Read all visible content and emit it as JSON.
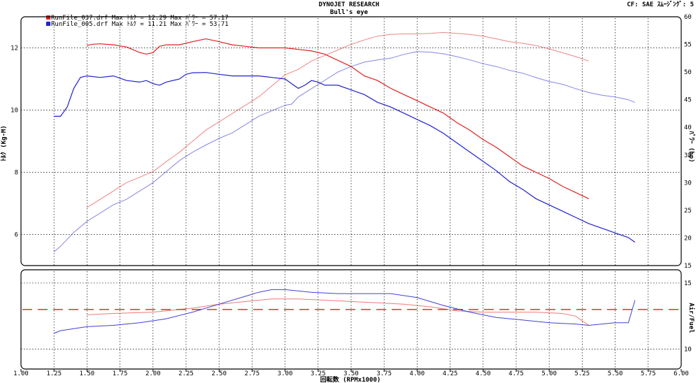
{
  "header": {
    "title": "DYNOJET  RESEARCH",
    "subtitle": "Bull's eye",
    "cf_label": "CF: SAE  ｽﾑｰｼﾞﾝｸﾞ: 5"
  },
  "legend": [
    {
      "text": "RunFile_037.drf Max ﾄﾙｸ = 12.29    Max ﾊﾟﾜｰ = 57.17",
      "color": "#e02020"
    },
    {
      "text": "RunFile_005.drf Max ﾄﾙｸ = 11.21    Max ﾊﾟﾜｰ = 53.71",
      "color": "#2020d0"
    }
  ],
  "axes": {
    "x_label": "回転数 (RPMx1000)",
    "left_label": "ﾄﾙｸ (Kg-M)",
    "right_label": "ﾊﾟﾜｰ (hp)",
    "af_label": "Air/Fuel"
  },
  "chart_data": {
    "type": "line",
    "xlim": [
      1.0,
      6.0
    ],
    "x_ticks": [
      "1.00",
      "1.25",
      "1.50",
      "1.75",
      "2.00",
      "2.25",
      "2.50",
      "2.75",
      "3.00",
      "3.25",
      "3.50",
      "3.75",
      "4.00",
      "4.25",
      "4.50",
      "4.75",
      "5.00",
      "5.25",
      "5.50",
      "5.75",
      "6.00"
    ],
    "torque_ylim": [
      5.0,
      13.0
    ],
    "torque_ticks": [
      "6",
      "8",
      "10",
      "12"
    ],
    "power_ylim": [
      15,
      60
    ],
    "power_ticks": [
      "15",
      "20",
      "25",
      "30",
      "35",
      "40",
      "45",
      "50",
      "55",
      "60"
    ],
    "af_ylim": [
      8.5,
      16.0
    ],
    "af_ticks": [
      "10",
      "15"
    ],
    "af_reference": 13.0,
    "series": [
      {
        "name": "RunFile_037.drf",
        "color": "#e02020",
        "torque": {
          "x": [
            1.5,
            1.55,
            1.6,
            1.7,
            1.8,
            1.9,
            1.95,
            2.0,
            2.05,
            2.1,
            2.2,
            2.3,
            2.4,
            2.5,
            2.6,
            2.7,
            2.8,
            2.9,
            3.0,
            3.1,
            3.2,
            3.3,
            3.4,
            3.5,
            3.6,
            3.7,
            3.8,
            3.9,
            4.0,
            4.1,
            4.2,
            4.3,
            4.4,
            4.5,
            4.6,
            4.7,
            4.8,
            4.9,
            5.0,
            5.1,
            5.2,
            5.3
          ],
          "y": [
            12.08,
            12.12,
            12.13,
            12.1,
            12.03,
            11.85,
            11.8,
            11.85,
            12.05,
            12.1,
            12.1,
            12.2,
            12.29,
            12.2,
            12.1,
            12.05,
            12.0,
            12.0,
            12.0,
            11.95,
            11.9,
            11.8,
            11.6,
            11.4,
            11.1,
            10.95,
            10.7,
            10.5,
            10.3,
            10.1,
            9.9,
            9.6,
            9.35,
            9.05,
            8.8,
            8.5,
            8.2,
            8.0,
            7.8,
            7.55,
            7.35,
            7.15
          ]
        },
        "power": {
          "x": [
            1.5,
            1.6,
            1.7,
            1.8,
            1.9,
            2.0,
            2.1,
            2.2,
            2.3,
            2.4,
            2.5,
            2.6,
            2.7,
            2.8,
            2.9,
            3.0,
            3.1,
            3.2,
            3.3,
            3.4,
            3.5,
            3.6,
            3.7,
            3.8,
            3.9,
            4.0,
            4.1,
            4.2,
            4.3,
            4.4,
            4.5,
            4.6,
            4.7,
            4.8,
            4.9,
            5.0,
            5.1,
            5.2,
            5.3
          ],
          "y": [
            25.5,
            27.0,
            28.5,
            30.0,
            31.0,
            32.0,
            33.8,
            35.5,
            37.5,
            39.5,
            41.0,
            42.5,
            44.0,
            45.5,
            47.5,
            49.5,
            50.5,
            52.0,
            53.0,
            54.0,
            55.0,
            55.8,
            56.5,
            56.8,
            56.9,
            56.9,
            57.0,
            57.17,
            57.0,
            56.8,
            56.5,
            56.0,
            55.5,
            55.2,
            54.8,
            54.2,
            53.5,
            52.8,
            52.0
          ]
        },
        "air_fuel": {
          "x": [
            1.5,
            1.7,
            2.0,
            2.3,
            2.5,
            2.7,
            2.9,
            3.1,
            3.3,
            3.5,
            3.7,
            3.9,
            4.1,
            4.3,
            4.5,
            4.7,
            4.9,
            5.1,
            5.2,
            5.3
          ],
          "y": [
            12.6,
            12.7,
            12.8,
            13.1,
            13.4,
            13.6,
            13.8,
            13.8,
            13.7,
            13.6,
            13.5,
            13.4,
            13.2,
            12.9,
            12.8,
            12.8,
            12.8,
            12.7,
            12.5,
            11.8
          ]
        }
      },
      {
        "name": "RunFile_005.drf",
        "color": "#2020d0",
        "torque": {
          "x": [
            1.25,
            1.3,
            1.35,
            1.4,
            1.45,
            1.5,
            1.6,
            1.7,
            1.8,
            1.9,
            1.95,
            2.0,
            2.05,
            2.1,
            2.2,
            2.25,
            2.3,
            2.4,
            2.5,
            2.6,
            2.7,
            2.8,
            2.9,
            3.0,
            3.05,
            3.1,
            3.15,
            3.2,
            3.25,
            3.3,
            3.4,
            3.5,
            3.6,
            3.7,
            3.8,
            3.9,
            4.0,
            4.1,
            4.2,
            4.3,
            4.4,
            4.5,
            4.6,
            4.7,
            4.8,
            4.9,
            5.0,
            5.1,
            5.2,
            5.3,
            5.4,
            5.5,
            5.6,
            5.65
          ],
          "y": [
            9.8,
            9.8,
            10.1,
            10.7,
            11.05,
            11.1,
            11.05,
            11.1,
            10.95,
            10.9,
            10.95,
            10.85,
            10.8,
            10.9,
            11.0,
            11.15,
            11.2,
            11.21,
            11.15,
            11.1,
            11.1,
            11.1,
            11.05,
            11.0,
            10.85,
            10.7,
            10.8,
            10.95,
            10.9,
            10.8,
            10.8,
            10.65,
            10.5,
            10.25,
            10.1,
            9.9,
            9.7,
            9.5,
            9.25,
            8.95,
            8.65,
            8.35,
            8.05,
            7.7,
            7.45,
            7.15,
            6.95,
            6.75,
            6.55,
            6.35,
            6.2,
            6.05,
            5.9,
            5.75
          ]
        },
        "power": {
          "x": [
            1.25,
            1.3,
            1.4,
            1.5,
            1.6,
            1.7,
            1.8,
            1.9,
            2.0,
            2.1,
            2.2,
            2.3,
            2.4,
            2.5,
            2.6,
            2.7,
            2.8,
            2.9,
            3.0,
            3.05,
            3.1,
            3.2,
            3.3,
            3.4,
            3.5,
            3.6,
            3.7,
            3.8,
            3.9,
            4.0,
            4.1,
            4.2,
            4.3,
            4.4,
            4.5,
            4.6,
            4.7,
            4.8,
            4.9,
            5.0,
            5.1,
            5.2,
            5.3,
            5.4,
            5.5,
            5.6,
            5.65
          ],
          "y": [
            17.5,
            18.5,
            21.0,
            23.0,
            24.5,
            26.0,
            27.0,
            28.5,
            30.0,
            32.0,
            34.0,
            35.5,
            36.8,
            38.0,
            39.0,
            40.5,
            42.0,
            43.0,
            44.0,
            44.2,
            45.5,
            47.0,
            48.5,
            50.0,
            51.0,
            51.8,
            52.2,
            52.5,
            53.2,
            53.71,
            53.6,
            53.3,
            52.8,
            52.2,
            51.5,
            51.0,
            50.3,
            49.8,
            49.0,
            48.3,
            47.8,
            47.0,
            46.3,
            45.8,
            45.5,
            45.0,
            44.5
          ]
        },
        "air_fuel": {
          "x": [
            1.25,
            1.3,
            1.5,
            1.7,
            1.9,
            2.1,
            2.3,
            2.5,
            2.7,
            2.8,
            2.9,
            3.0,
            3.2,
            3.4,
            3.6,
            3.8,
            4.0,
            4.2,
            4.4,
            4.6,
            4.8,
            5.0,
            5.2,
            5.3,
            5.4,
            5.5,
            5.6,
            5.65
          ],
          "y": [
            11.2,
            11.4,
            11.7,
            11.8,
            12.0,
            12.3,
            12.8,
            13.4,
            14.0,
            14.3,
            14.5,
            14.5,
            14.3,
            14.2,
            14.2,
            14.2,
            13.9,
            13.3,
            12.8,
            12.4,
            12.2,
            12.0,
            11.9,
            11.8,
            11.9,
            12.0,
            12.0,
            13.7
          ]
        }
      }
    ]
  }
}
